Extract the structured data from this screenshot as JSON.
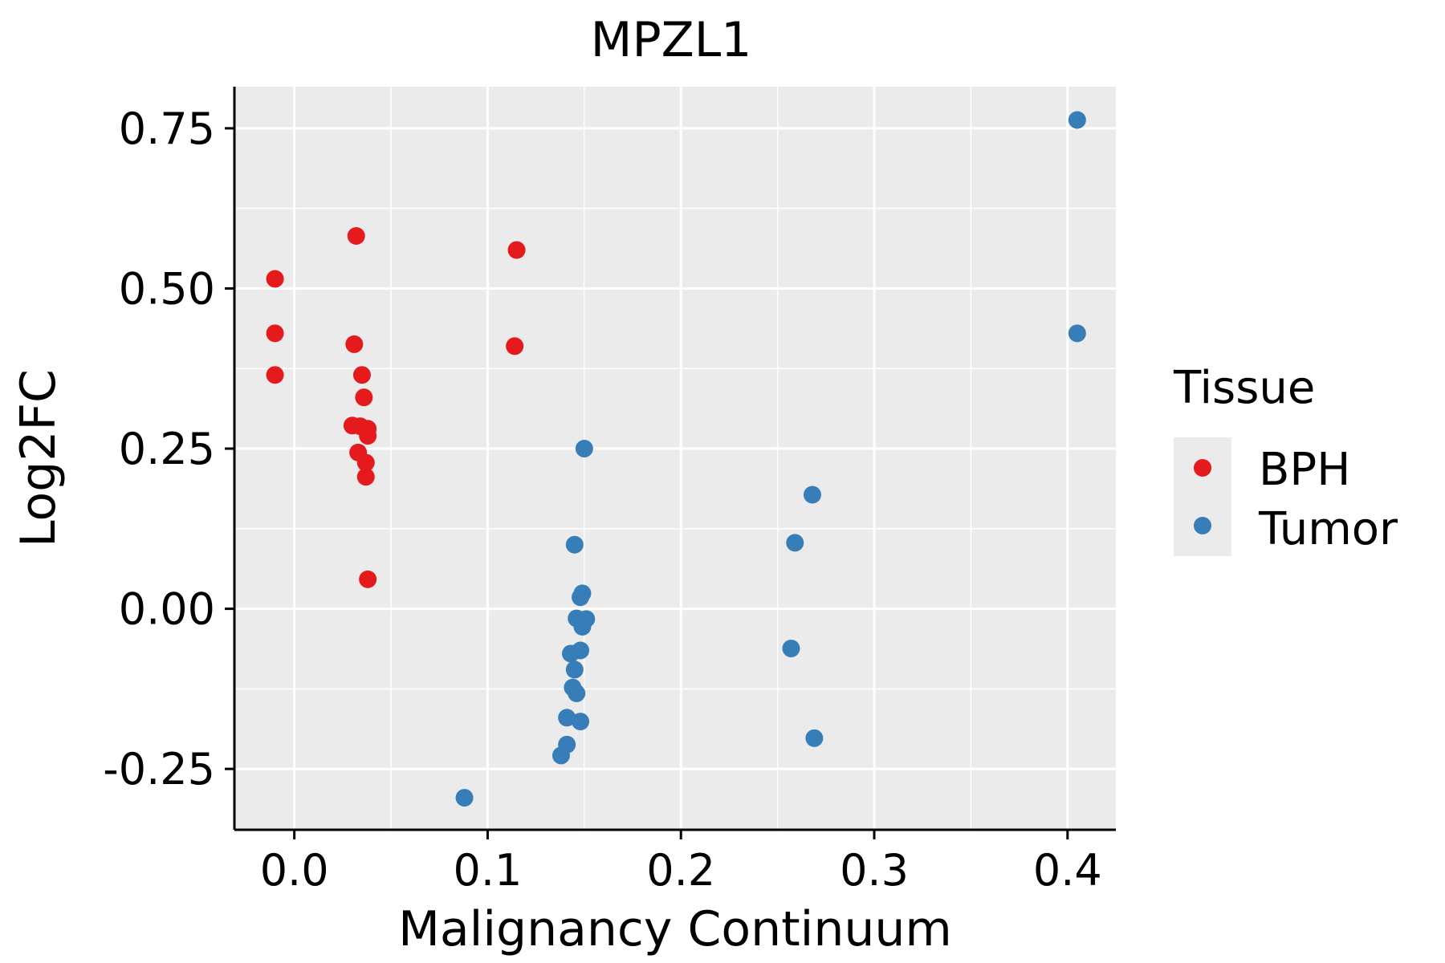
{
  "chart_data": {
    "type": "scatter",
    "title": "MPZL1",
    "xlabel": "Malignancy Continuum",
    "ylabel": "Log2FC",
    "xlim": [
      -0.031,
      0.425
    ],
    "ylim": [
      -0.345,
      0.815
    ],
    "x_ticks": [
      0.0,
      0.1,
      0.2,
      0.3,
      0.4
    ],
    "x_tick_labels": [
      "0.0",
      "0.1",
      "0.2",
      "0.3",
      "0.4"
    ],
    "x_minor_ticks": [
      0.05,
      0.15,
      0.25,
      0.35
    ],
    "y_ticks": [
      -0.25,
      0.0,
      0.25,
      0.5,
      0.75
    ],
    "y_tick_labels": [
      "-0.25",
      "0.00",
      "0.25",
      "0.50",
      "0.75"
    ],
    "y_minor_ticks": [
      -0.125,
      0.125,
      0.375,
      0.625
    ],
    "grid": true,
    "panel_background": "#EBEBEB",
    "legend": {
      "title": "Tissue",
      "position": "right",
      "entries": [
        {
          "label": "BPH",
          "color": "#E41A1C"
        },
        {
          "label": "Tumor",
          "color": "#377EB8"
        }
      ]
    },
    "series": [
      {
        "name": "BPH",
        "color": "#E41A1C",
        "points": [
          [
            -0.01,
            0.515
          ],
          [
            -0.01,
            0.43
          ],
          [
            -0.01,
            0.365
          ],
          [
            0.032,
            0.582
          ],
          [
            0.031,
            0.413
          ],
          [
            0.035,
            0.365
          ],
          [
            0.036,
            0.33
          ],
          [
            0.03,
            0.286
          ],
          [
            0.034,
            0.285
          ],
          [
            0.038,
            0.281
          ],
          [
            0.038,
            0.27
          ],
          [
            0.033,
            0.244
          ],
          [
            0.037,
            0.228
          ],
          [
            0.037,
            0.206
          ],
          [
            0.038,
            0.046
          ],
          [
            0.115,
            0.56
          ],
          [
            0.114,
            0.41
          ]
        ]
      },
      {
        "name": "Tumor",
        "color": "#377EB8",
        "points": [
          [
            0.15,
            0.25
          ],
          [
            0.145,
            0.1
          ],
          [
            0.149,
            0.024
          ],
          [
            0.148,
            0.018
          ],
          [
            0.146,
            -0.015
          ],
          [
            0.151,
            -0.016
          ],
          [
            0.149,
            -0.028
          ],
          [
            0.143,
            -0.07
          ],
          [
            0.148,
            -0.065
          ],
          [
            0.145,
            -0.095
          ],
          [
            0.144,
            -0.123
          ],
          [
            0.146,
            -0.132
          ],
          [
            0.141,
            -0.17
          ],
          [
            0.148,
            -0.176
          ],
          [
            0.141,
            -0.212
          ],
          [
            0.138,
            -0.229
          ],
          [
            0.088,
            -0.295
          ],
          [
            0.268,
            0.178
          ],
          [
            0.259,
            0.103
          ],
          [
            0.257,
            -0.062
          ],
          [
            0.269,
            -0.202
          ],
          [
            0.405,
            0.763
          ],
          [
            0.405,
            0.43
          ]
        ]
      }
    ]
  }
}
